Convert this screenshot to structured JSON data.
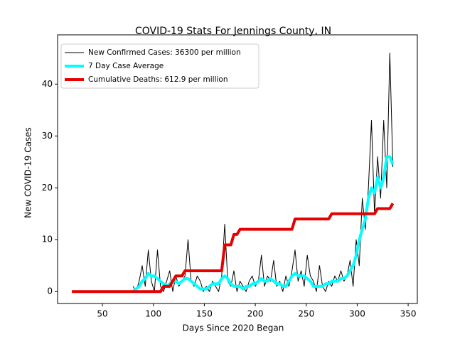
{
  "chart_data": {
    "type": "line",
    "title": "COVID-19 Stats For Jennings County, IN",
    "xlabel": "Days Since 2020 Began",
    "ylabel": "New COVID-19 Cases",
    "xlim": [
      6,
      359
    ],
    "ylim": [
      -2.3,
      49.5
    ],
    "xticks": [
      50,
      100,
      150,
      200,
      250,
      300,
      350
    ],
    "yticks": [
      0,
      10,
      20,
      30,
      40
    ],
    "legend": "upper left",
    "x": [
      20,
      23,
      26,
      29,
      32,
      35,
      38,
      41,
      44,
      47,
      50,
      53,
      56,
      59,
      62,
      65,
      68,
      71,
      74,
      77,
      80,
      83,
      86,
      89,
      92,
      95,
      98,
      101,
      104,
      107,
      110,
      113,
      116,
      119,
      122,
      125,
      128,
      131,
      134,
      137,
      140,
      143,
      146,
      149,
      152,
      155,
      158,
      161,
      164,
      167,
      170,
      173,
      176,
      179,
      182,
      185,
      188,
      191,
      194,
      197,
      200,
      203,
      206,
      209,
      212,
      215,
      218,
      221,
      224,
      227,
      230,
      233,
      236,
      239,
      242,
      245,
      248,
      251,
      254,
      257,
      260,
      263,
      266,
      269,
      272,
      275,
      278,
      281,
      284,
      287,
      290,
      293,
      296,
      299,
      302,
      305,
      308,
      311,
      314,
      317,
      320,
      323,
      326,
      329,
      332,
      335
    ],
    "series": [
      {
        "name": "New Confirmed Cases: 36300 per million",
        "color": "#000000",
        "width": 1,
        "values": [
          null,
          null,
          null,
          null,
          null,
          null,
          null,
          null,
          null,
          null,
          null,
          null,
          null,
          null,
          null,
          null,
          null,
          null,
          null,
          null,
          1,
          0,
          2,
          5,
          1,
          8,
          2,
          0,
          8,
          1,
          0,
          2,
          4,
          0,
          3,
          1,
          2,
          3,
          10,
          2,
          1,
          3,
          2,
          0,
          1,
          0,
          2,
          1,
          0,
          3,
          13,
          2,
          1,
          4,
          0,
          2,
          1,
          0,
          2,
          3,
          1,
          2,
          7,
          1,
          3,
          2,
          6,
          1,
          2,
          0,
          3,
          1,
          4,
          8,
          2,
          4,
          1,
          7,
          3,
          2,
          0,
          5,
          1,
          0,
          2,
          1,
          3,
          2,
          4,
          2,
          3,
          6,
          1,
          10,
          5,
          18,
          12,
          20,
          33,
          15,
          26,
          18,
          33,
          20,
          46,
          24
        ]
      },
      {
        "name": "7 Day Case Average",
        "color": "#00ffff",
        "width": 4,
        "values": [
          null,
          null,
          null,
          null,
          null,
          null,
          null,
          null,
          null,
          null,
          null,
          null,
          null,
          null,
          null,
          null,
          null,
          null,
          null,
          null,
          0,
          0.5,
          1,
          2,
          2.5,
          3.5,
          3,
          3,
          2.5,
          2,
          1.5,
          1,
          1.5,
          2,
          2,
          1.5,
          2,
          2.5,
          2.5,
          2,
          1.5,
          1,
          0.5,
          0.5,
          0.5,
          1,
          1.5,
          1.5,
          1.5,
          2.5,
          3,
          2.5,
          1.5,
          1,
          1,
          1,
          0.5,
          1,
          1,
          1.5,
          1.5,
          2,
          2.5,
          2,
          2,
          2.5,
          2,
          1.5,
          1.5,
          1,
          1,
          2,
          3,
          3.5,
          3,
          3,
          3,
          2.5,
          2,
          1,
          1,
          1,
          1,
          1.5,
          1.5,
          2,
          2,
          2,
          2.5,
          2.5,
          3,
          4,
          5,
          7,
          10,
          12,
          14,
          18,
          20,
          19,
          22,
          20,
          22,
          26,
          26,
          24.5
        ]
      },
      {
        "name": "Cumulative Deaths: 612.9 per million",
        "color": "#e60000",
        "width": 4,
        "values": [
          0,
          0,
          0,
          0,
          0,
          0,
          0,
          0,
          0,
          0,
          0,
          0,
          0,
          0,
          0,
          0,
          0,
          0,
          0,
          0,
          0,
          0,
          0,
          0,
          0,
          0,
          0,
          0,
          0,
          0,
          1,
          1,
          1,
          2,
          3,
          3,
          3,
          4,
          4,
          4,
          4,
          4,
          4,
          4,
          4,
          4,
          4,
          4,
          4,
          4,
          9,
          9,
          9,
          11,
          11,
          12,
          12,
          12,
          12,
          12,
          12,
          12,
          12,
          12,
          12,
          12,
          12,
          12,
          12,
          12,
          12,
          12,
          12,
          14,
          14,
          14,
          14,
          14,
          14,
          14,
          14,
          14,
          14,
          14,
          14,
          15,
          15,
          15,
          15,
          15,
          15,
          15,
          15,
          15,
          15,
          15,
          15,
          15,
          15,
          15,
          16,
          16,
          16,
          16,
          16,
          17
        ]
      }
    ]
  }
}
